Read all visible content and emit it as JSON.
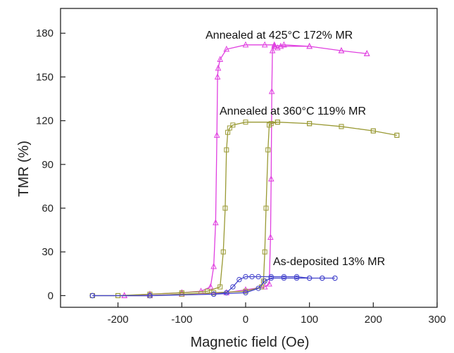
{
  "chart_data": {
    "type": "scatter",
    "xlabel": "Magnetic field (Oe)",
    "ylabel": "TMR (%)",
    "xlim": [
      -290,
      300
    ],
    "ylim": [
      -8,
      197
    ],
    "xticks": [
      -200,
      -100,
      0,
      100,
      200,
      300
    ],
    "yticks": [
      0,
      30,
      60,
      90,
      120,
      150,
      180
    ],
    "grid": false,
    "legend": "none",
    "annotations": [
      {
        "text": "Annealed at 425°C 172% MR",
        "x": 68,
        "y": 182
      },
      {
        "text": "Annealed at 360°C  119% MR",
        "x": 80,
        "y": 129
      },
      {
        "text": "As-deposited 13% MR",
        "x": 72,
        "y": 22
      }
    ],
    "series": [
      {
        "color": "#e040e0",
        "marker": "triangle",
        "x": [
          -190,
          -150,
          -100,
          -70,
          -55,
          -50,
          -47,
          -45,
          -44,
          -43,
          -40,
          -30,
          0,
          30,
          45,
          46,
          50,
          55,
          100,
          150,
          190,
          190,
          150,
          100,
          60,
          45,
          42,
          41,
          40,
          39,
          37,
          30,
          0,
          -30,
          -100,
          -150,
          -190
        ],
        "y": [
          0,
          1,
          2,
          3,
          6,
          20,
          50,
          110,
          150,
          156,
          162,
          169,
          172,
          172,
          172,
          171,
          170,
          171,
          171,
          168,
          166,
          166,
          168,
          171,
          172,
          171,
          168,
          140,
          80,
          40,
          8,
          6,
          4,
          2,
          1,
          0,
          0
        ]
      },
      {
        "color": "#999933",
        "marker": "square",
        "x": [
          -240,
          -200,
          -150,
          -100,
          -60,
          -40,
          -35,
          -32,
          -30,
          -28,
          -25,
          -20,
          0,
          50,
          100,
          150,
          200,
          237,
          237,
          200,
          150,
          100,
          50,
          40,
          37,
          35,
          32,
          30,
          28,
          25,
          0,
          -50,
          -100,
          -150,
          -200,
          -240
        ],
        "y": [
          0,
          0,
          1,
          2,
          3,
          6,
          30,
          60,
          100,
          112,
          115,
          117,
          119,
          119,
          118,
          116,
          113,
          110,
          110,
          113,
          116,
          118,
          119,
          118,
          117,
          100,
          60,
          30,
          10,
          6,
          3,
          2,
          1,
          0,
          0,
          0
        ]
      },
      {
        "color": "#4444cc",
        "marker": "circle",
        "x": [
          -240,
          -150,
          -50,
          -30,
          -20,
          -10,
          0,
          10,
          20,
          40,
          60,
          80,
          100,
          120,
          140,
          140,
          120,
          100,
          80,
          60,
          40,
          30,
          20,
          0,
          -50,
          -150,
          -240
        ],
        "y": [
          0,
          0,
          1,
          2,
          6,
          11,
          13,
          13,
          13,
          13,
          13,
          13,
          12,
          12,
          12,
          12,
          12,
          12,
          12,
          12,
          12,
          10,
          5,
          2,
          1,
          0,
          0
        ]
      }
    ]
  }
}
